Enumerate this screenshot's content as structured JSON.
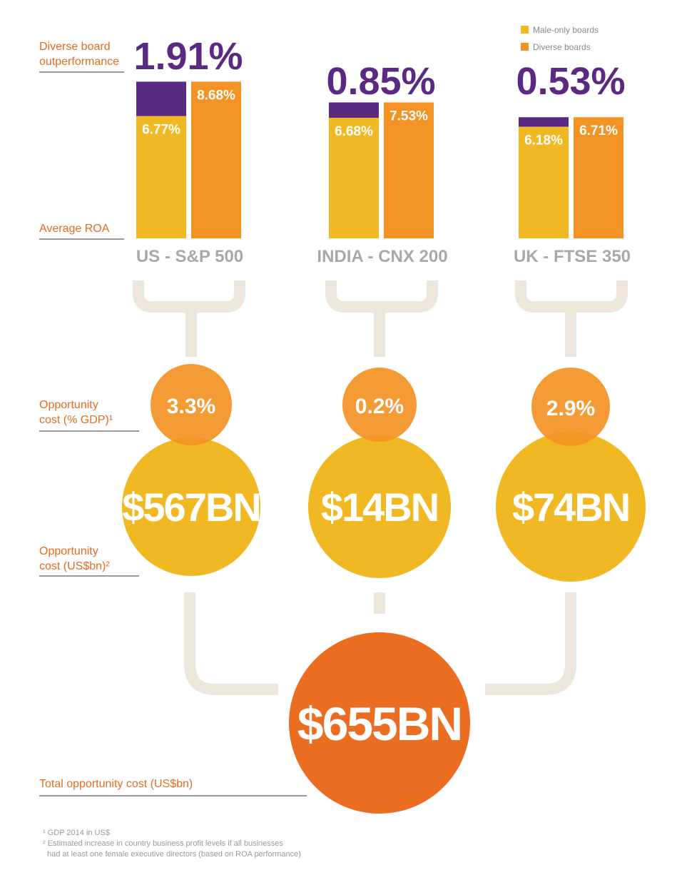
{
  "chart_data": {
    "type": "bar",
    "legend": [
      {
        "label": "Male-only boards",
        "color": "#f0b823"
      },
      {
        "label": "Diverse boards",
        "color": "#f39325"
      }
    ],
    "legend_placement": "top-right",
    "left_labels": {
      "outperformance": [
        "Diverse board",
        "outperformance"
      ],
      "roa": "Average ROA",
      "gdp_pct": [
        "Opportunity",
        "cost (% GDP)¹"
      ],
      "usd": [
        "Opportunity",
        "cost (US$bn)²"
      ],
      "total": "Total opportunity cost (US$bn)"
    },
    "markets": [
      {
        "name": "US - S&P 500",
        "male_only": 6.77,
        "diverse": 8.68,
        "outperformance": "1.91%",
        "male_label": "6.77%",
        "diverse_label": "8.68%",
        "gdp_pct": "3.3%",
        "usd_bn": "$567BN"
      },
      {
        "name": "INDIA - CNX 200",
        "male_only": 6.68,
        "diverse": 7.53,
        "outperformance": "0.85%",
        "male_label": "6.68%",
        "diverse_label": "7.53%",
        "gdp_pct": "0.2%",
        "usd_bn": "$14BN"
      },
      {
        "name": "UK - FTSE 350",
        "male_only": 6.18,
        "diverse": 6.71,
        "outperformance": "0.53%",
        "male_label": "6.18%",
        "diverse_label": "6.71%",
        "gdp_pct": "2.9%",
        "usd_bn": "$74BN"
      }
    ],
    "total": "$655BN",
    "colors": {
      "male": "#f0b823",
      "diverse": "#f39325",
      "gap": "#5a2a82",
      "total": "#ea6d22",
      "connector": "#ece6dd"
    }
  },
  "footnotes": [
    "¹ GDP 2014 in US$",
    "² Estimated increase in country business profit levels if all businesses",
    "had at least one female executive directors (based on ROA performance)"
  ]
}
